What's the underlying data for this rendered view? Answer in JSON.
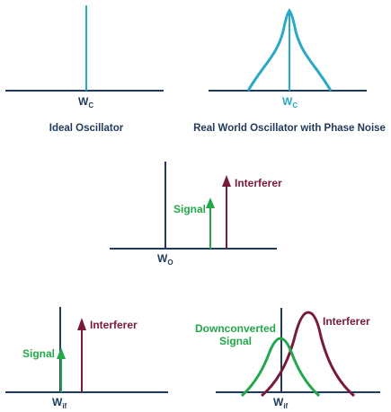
{
  "colors": {
    "axis": "#1f3a5a",
    "carrier": "#2aa8c8",
    "signal": "#22a84a",
    "interferer": "#7a1a3a",
    "caption": "#1f3a5a"
  },
  "panels": {
    "ideal": {
      "freq_main": "W",
      "freq_sub": "C",
      "caption": "Ideal Oscillator"
    },
    "real": {
      "freq_main": "W",
      "freq_sub": "C",
      "caption": "Real World Oscillator with Phase Noise"
    },
    "rf": {
      "freq_main": "W",
      "freq_sub": "O",
      "signal_label": "Signal",
      "interferer_label": "Interferer"
    },
    "if_ideal": {
      "freq_main": "W",
      "freq_sub": "if",
      "signal_label": "Signal",
      "interferer_label": "Interferer"
    },
    "if_real": {
      "freq_main": "W",
      "freq_sub": "if",
      "signal_label_line1": "Downconverted",
      "signal_label_line2": "Signal",
      "interferer_label": "Interferer"
    }
  }
}
